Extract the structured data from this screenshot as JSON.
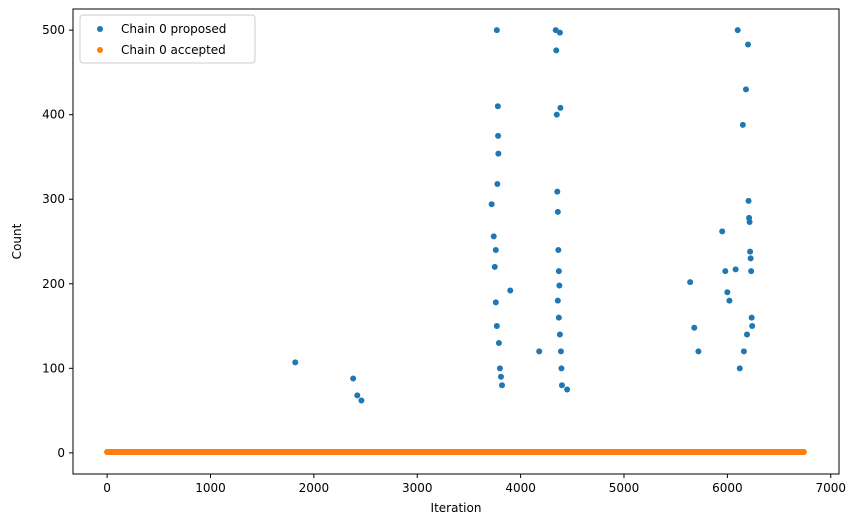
{
  "chart_data": {
    "type": "scatter",
    "title": "",
    "xlabel": "Iteration",
    "ylabel": "Count",
    "xlim": [
      -330,
      7080
    ],
    "ylim": [
      -25,
      525
    ],
    "xticks": [
      0,
      1000,
      2000,
      3000,
      4000,
      5000,
      6000,
      7000
    ],
    "yticks": [
      0,
      100,
      200,
      300,
      400,
      500
    ],
    "legend_position": "top-left",
    "grid": false,
    "series": [
      {
        "name": "Chain 0 proposed",
        "color": "#1f77b4",
        "points": [
          [
            1820,
            107
          ],
          [
            2380,
            88
          ],
          [
            2420,
            68
          ],
          [
            2460,
            62
          ],
          [
            3720,
            294
          ],
          [
            3740,
            256
          ],
          [
            3760,
            240
          ],
          [
            3770,
            500
          ],
          [
            3775,
            318
          ],
          [
            3780,
            410
          ],
          [
            3782,
            375
          ],
          [
            3785,
            354
          ],
          [
            3750,
            220
          ],
          [
            3760,
            178
          ],
          [
            3770,
            150
          ],
          [
            3790,
            130
          ],
          [
            3800,
            100
          ],
          [
            3810,
            90
          ],
          [
            3820,
            80
          ],
          [
            3900,
            192
          ],
          [
            4180,
            120
          ],
          [
            4340,
            500
          ],
          [
            4345,
            476
          ],
          [
            4350,
            400
          ],
          [
            4355,
            309
          ],
          [
            4360,
            285
          ],
          [
            4365,
            240
          ],
          [
            4370,
            215
          ],
          [
            4375,
            198
          ],
          [
            4380,
            497
          ],
          [
            4385,
            408
          ],
          [
            4360,
            180
          ],
          [
            4370,
            160
          ],
          [
            4380,
            140
          ],
          [
            4390,
            120
          ],
          [
            4395,
            100
          ],
          [
            4400,
            80
          ],
          [
            4450,
            75
          ],
          [
            5640,
            202
          ],
          [
            5680,
            148
          ],
          [
            5720,
            120
          ],
          [
            5950,
            262
          ],
          [
            5980,
            215
          ],
          [
            6000,
            190
          ],
          [
            6020,
            180
          ],
          [
            6080,
            217
          ],
          [
            6100,
            500
          ],
          [
            6150,
            388
          ],
          [
            6180,
            430
          ],
          [
            6200,
            483
          ],
          [
            6205,
            298
          ],
          [
            6210,
            278
          ],
          [
            6215,
            273
          ],
          [
            6220,
            238
          ],
          [
            6225,
            230
          ],
          [
            6230,
            215
          ],
          [
            6235,
            160
          ],
          [
            6240,
            150
          ],
          [
            6190,
            140
          ],
          [
            6160,
            120
          ],
          [
            6120,
            100
          ]
        ]
      },
      {
        "name": "Chain 0 accepted",
        "color": "#ff7f0e",
        "points": [
          [
            0,
            1
          ],
          [
            1000,
            1
          ],
          [
            2000,
            1
          ],
          [
            3000,
            1
          ],
          [
            4000,
            1
          ],
          [
            5000,
            1
          ],
          [
            6000,
            1
          ],
          [
            6740,
            1
          ]
        ]
      }
    ]
  }
}
